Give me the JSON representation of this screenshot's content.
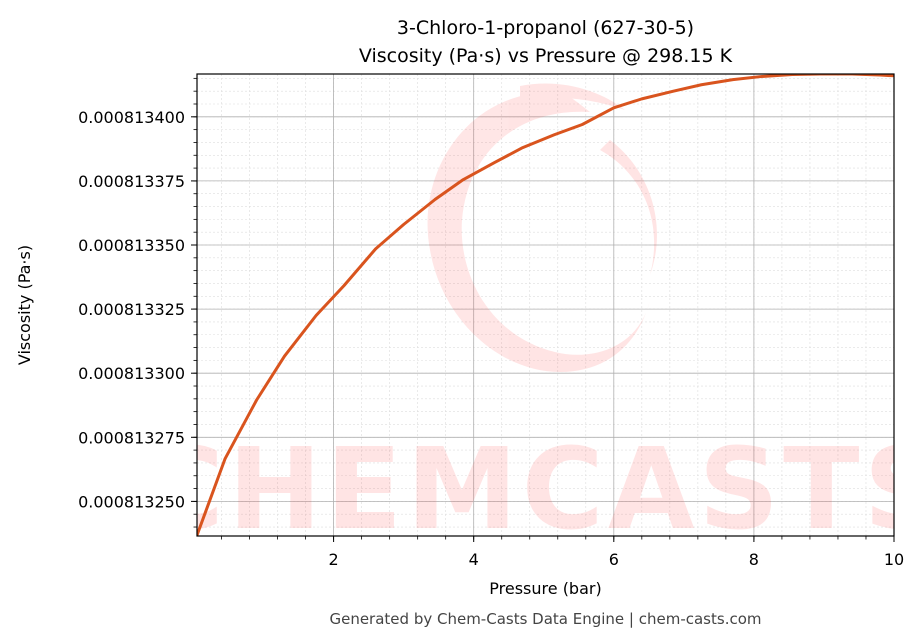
{
  "chart_data": {
    "type": "line",
    "title": "3-Chloro-1-propanol (627-30-5)",
    "subtitle": "Viscosity (Pa·s) vs Pressure @ 298.15 K",
    "xlabel": "Pressure (bar)",
    "ylabel": "Viscosity (Pa·s)",
    "xlim": [
      0.05,
      10
    ],
    "ylim": [
      0.0008132365,
      0.0008134167
    ],
    "x_ticks": [
      2,
      4,
      6,
      8,
      10
    ],
    "x_tick_labels": [
      "2",
      "4",
      "6",
      "8",
      "10"
    ],
    "y_ticks": [
      0.00081325,
      0.000813275,
      0.0008133,
      0.000813325,
      0.00081335,
      0.000813375,
      0.0008134
    ],
    "y_tick_labels": [
      "0.000813250",
      "0.000813275",
      "0.000813300",
      "0.000813325",
      "0.000813350",
      "0.000813375",
      "0.000813400"
    ],
    "grid": true,
    "series": [
      {
        "color": "#d9541e",
        "x": [
          0.05,
          0.45,
          0.9,
          1.3,
          1.75,
          2.15,
          2.6,
          3.0,
          3.45,
          3.85,
          4.3,
          4.7,
          5.15,
          5.55,
          6.0,
          6.4,
          6.85,
          7.25,
          7.7,
          8.1,
          8.55,
          8.95,
          9.4,
          9.8,
          10.0
        ],
        "values": [
          0.0008132368,
          0.0008132666,
          0.0008132895,
          0.0008133067,
          0.0008133225,
          0.0008133342,
          0.0008133485,
          0.000813358,
          0.0008133678,
          0.0008133755,
          0.0008133822,
          0.000813388,
          0.000813393,
          0.000813397,
          0.0008134035,
          0.000813407,
          0.00081341,
          0.0008134125,
          0.0008134145,
          0.0008134157,
          0.0008134165,
          0.0008134167,
          0.0008134167,
          0.0008134163,
          0.000813416
        ]
      }
    ]
  },
  "watermark": {
    "text": "CHEMCASTS",
    "color": "#ff3b3b"
  },
  "footer": "Generated by Chem-Casts Data Engine | chem-casts.com"
}
